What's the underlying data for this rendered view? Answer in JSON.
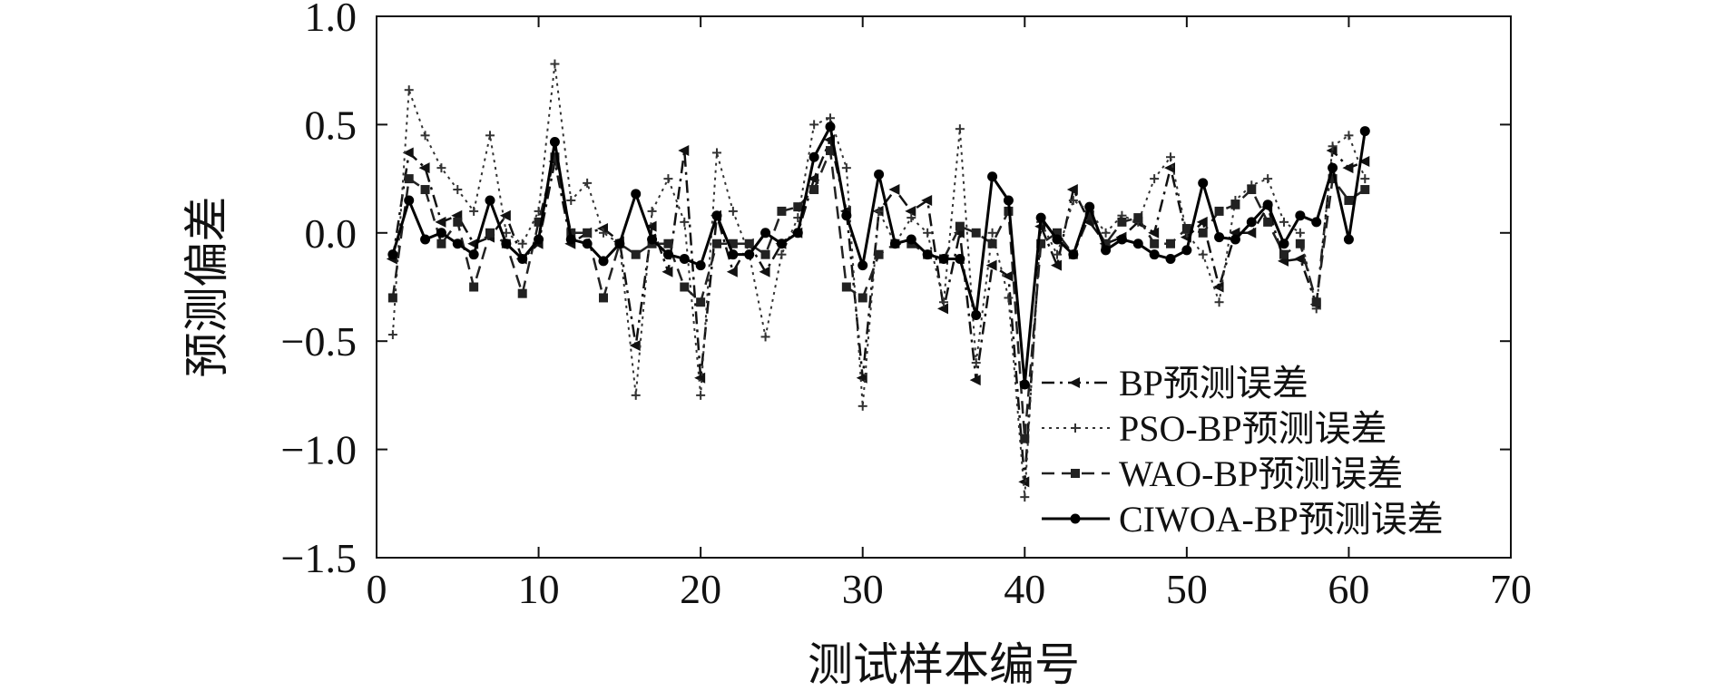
{
  "chart_data": {
    "type": "line",
    "title": "",
    "xlabel": "测试样本编号",
    "ylabel": "预测偏差",
    "xlim": [
      0,
      70
    ],
    "ylim": [
      -1.5,
      1.0
    ],
    "xticks": [
      0,
      10,
      20,
      30,
      40,
      50,
      60,
      70
    ],
    "yticks": [
      -1.5,
      -1.0,
      -0.5,
      0.0,
      0.5,
      1.0
    ],
    "ytick_labels": [
      "−1.5",
      "−1.0",
      "−0.5",
      "0.0",
      "0.5",
      "1.0"
    ],
    "grid": false,
    "legend_position": "lower-right",
    "x": [
      1,
      2,
      3,
      4,
      5,
      6,
      7,
      8,
      9,
      10,
      11,
      12,
      13,
      14,
      15,
      16,
      17,
      18,
      19,
      20,
      21,
      22,
      23,
      24,
      25,
      26,
      27,
      28,
      29,
      30,
      31,
      32,
      33,
      34,
      35,
      36,
      37,
      38,
      39,
      40,
      41,
      42,
      43,
      44,
      45,
      46,
      47,
      48,
      49,
      50,
      51,
      52,
      53,
      54,
      55,
      56,
      57,
      58,
      59,
      60,
      61
    ],
    "series": [
      {
        "name": "BP预测误差",
        "style": "dashdot",
        "marker": "triangle-left",
        "color": "#111111",
        "values": [
          -0.12,
          0.37,
          0.3,
          0.05,
          0.08,
          -0.05,
          -0.02,
          0.08,
          -0.12,
          -0.05,
          0.33,
          -0.05,
          0.0,
          0.02,
          -0.04,
          -0.52,
          0.03,
          -0.18,
          0.38,
          -0.67,
          0.08,
          -0.18,
          -0.05,
          -0.18,
          -0.05,
          0.0,
          0.25,
          0.43,
          0.1,
          -0.67,
          0.1,
          0.2,
          0.1,
          0.15,
          -0.35,
          0.0,
          -0.68,
          -0.15,
          -0.2,
          -1.15,
          0.03,
          -0.15,
          0.2,
          0.05,
          -0.05,
          -0.02,
          0.05,
          0.0,
          0.3,
          -0.02,
          0.05,
          -0.25,
          0.0,
          0.0,
          0.12,
          -0.13,
          -0.12,
          -0.33,
          0.38,
          0.3,
          0.33
        ]
      },
      {
        "name": "PSO-BP预测误差",
        "style": "dotted",
        "marker": "plus",
        "color": "#333333",
        "values": [
          -0.47,
          0.66,
          0.45,
          0.3,
          0.2,
          0.1,
          0.45,
          0.0,
          -0.05,
          0.1,
          0.78,
          0.15,
          0.23,
          0.0,
          -0.05,
          -0.75,
          0.1,
          0.25,
          0.05,
          -0.75,
          0.37,
          0.1,
          -0.1,
          -0.48,
          -0.1,
          0.07,
          0.5,
          0.53,
          0.3,
          -0.8,
          0.1,
          -0.05,
          0.07,
          0.0,
          -0.32,
          0.48,
          -0.6,
          0.0,
          -0.3,
          -1.22,
          0.05,
          -0.1,
          0.15,
          0.1,
          0.0,
          0.08,
          0.05,
          0.25,
          0.35,
          0.0,
          -0.1,
          -0.32,
          0.15,
          0.22,
          0.25,
          0.05,
          0.0,
          -0.35,
          0.4,
          0.45,
          0.25
        ]
      },
      {
        "name": "WAO-BP预测误差",
        "style": "dashed",
        "marker": "square",
        "color": "#222222",
        "values": [
          -0.3,
          0.25,
          0.2,
          -0.05,
          0.05,
          -0.25,
          0.0,
          -0.05,
          -0.28,
          0.05,
          0.35,
          0.0,
          0.0,
          -0.3,
          -0.05,
          -0.1,
          -0.05,
          -0.05,
          -0.25,
          -0.32,
          -0.05,
          -0.05,
          -0.05,
          -0.1,
          0.1,
          0.12,
          0.2,
          0.38,
          -0.25,
          -0.3,
          -0.1,
          -0.05,
          -0.05,
          -0.1,
          -0.12,
          0.03,
          0.0,
          -0.05,
          0.1,
          -0.95,
          -0.05,
          0.0,
          -0.1,
          0.08,
          -0.05,
          0.05,
          0.07,
          -0.05,
          -0.05,
          0.02,
          0.0,
          0.1,
          0.13,
          0.2,
          0.05,
          -0.1,
          -0.05,
          -0.32,
          0.25,
          0.15,
          0.2
        ]
      },
      {
        "name": "CIWOA-BP预测误差",
        "style": "solid",
        "marker": "circle",
        "color": "#000000",
        "values": [
          -0.1,
          0.15,
          -0.03,
          0.0,
          -0.05,
          -0.1,
          0.15,
          -0.05,
          -0.12,
          -0.03,
          0.42,
          -0.03,
          -0.05,
          -0.13,
          -0.05,
          0.18,
          -0.03,
          -0.1,
          -0.12,
          -0.15,
          0.08,
          -0.1,
          -0.1,
          0.0,
          -0.05,
          0.0,
          0.35,
          0.49,
          0.08,
          -0.15,
          0.27,
          -0.05,
          -0.03,
          -0.1,
          -0.12,
          -0.12,
          -0.38,
          0.26,
          0.15,
          -0.7,
          0.07,
          -0.03,
          -0.1,
          0.12,
          -0.08,
          -0.03,
          -0.05,
          -0.1,
          -0.12,
          -0.08,
          0.23,
          -0.02,
          -0.03,
          0.05,
          0.13,
          -0.05,
          0.08,
          0.05,
          0.3,
          -0.03,
          0.47
        ]
      }
    ]
  }
}
